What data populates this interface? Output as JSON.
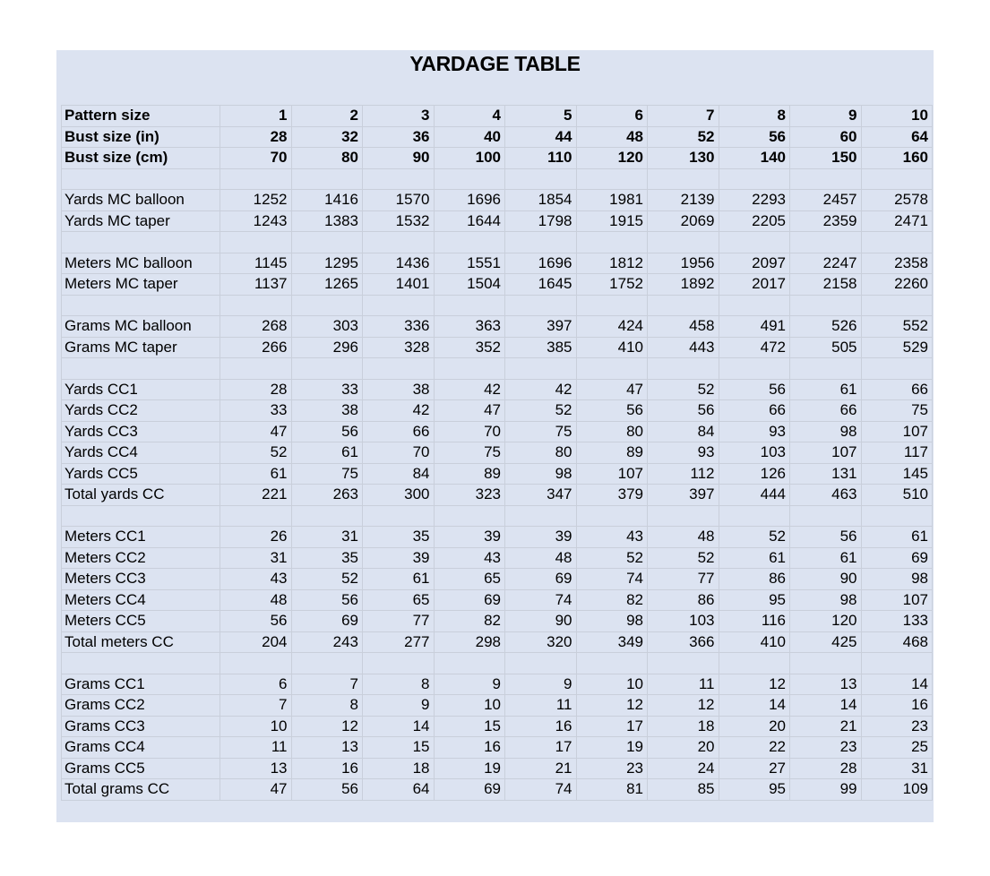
{
  "title": "YARDAGE TABLE",
  "header_rows": [
    {
      "label": "Pattern size",
      "values": [
        "1",
        "2",
        "3",
        "4",
        "5",
        "6",
        "7",
        "8",
        "9",
        "10"
      ]
    },
    {
      "label": "Bust size (in)",
      "values": [
        "28",
        "32",
        "36",
        "40",
        "44",
        "48",
        "52",
        "56",
        "60",
        "64"
      ]
    },
    {
      "label": "Bust size (cm)",
      "values": [
        "70",
        "80",
        "90",
        "100",
        "110",
        "120",
        "130",
        "140",
        "150",
        "160"
      ]
    }
  ],
  "groups": [
    [
      {
        "label": "Yards MC balloon",
        "values": [
          "1252",
          "1416",
          "1570",
          "1696",
          "1854",
          "1981",
          "2139",
          "2293",
          "2457",
          "2578"
        ]
      },
      {
        "label": "Yards MC taper",
        "values": [
          "1243",
          "1383",
          "1532",
          "1644",
          "1798",
          "1915",
          "2069",
          "2205",
          "2359",
          "2471"
        ]
      }
    ],
    [
      {
        "label": "Meters MC balloon",
        "values": [
          "1145",
          "1295",
          "1436",
          "1551",
          "1696",
          "1812",
          "1956",
          "2097",
          "2247",
          "2358"
        ]
      },
      {
        "label": "Meters MC taper",
        "values": [
          "1137",
          "1265",
          "1401",
          "1504",
          "1645",
          "1752",
          "1892",
          "2017",
          "2158",
          "2260"
        ]
      }
    ],
    [
      {
        "label": "Grams MC balloon",
        "values": [
          "268",
          "303",
          "336",
          "363",
          "397",
          "424",
          "458",
          "491",
          "526",
          "552"
        ]
      },
      {
        "label": "Grams MC taper",
        "values": [
          "266",
          "296",
          "328",
          "352",
          "385",
          "410",
          "443",
          "472",
          "505",
          "529"
        ]
      }
    ],
    [
      {
        "label": "Yards CC1",
        "values": [
          "28",
          "33",
          "38",
          "42",
          "42",
          "47",
          "52",
          "56",
          "61",
          "66"
        ]
      },
      {
        "label": "Yards CC2",
        "values": [
          "33",
          "38",
          "42",
          "47",
          "52",
          "56",
          "56",
          "66",
          "66",
          "75"
        ]
      },
      {
        "label": "Yards CC3",
        "values": [
          "47",
          "56",
          "66",
          "70",
          "75",
          "80",
          "84",
          "93",
          "98",
          "107"
        ]
      },
      {
        "label": "Yards CC4",
        "values": [
          "52",
          "61",
          "70",
          "75",
          "80",
          "89",
          "93",
          "103",
          "107",
          "117"
        ]
      },
      {
        "label": "Yards CC5",
        "values": [
          "61",
          "75",
          "84",
          "89",
          "98",
          "107",
          "112",
          "126",
          "131",
          "145"
        ]
      },
      {
        "label": "Total yards CC",
        "values": [
          "221",
          "263",
          "300",
          "323",
          "347",
          "379",
          "397",
          "444",
          "463",
          "510"
        ]
      }
    ],
    [
      {
        "label": "Meters CC1",
        "values": [
          "26",
          "31",
          "35",
          "39",
          "39",
          "43",
          "48",
          "52",
          "56",
          "61"
        ]
      },
      {
        "label": "Meters CC2",
        "values": [
          "31",
          "35",
          "39",
          "43",
          "48",
          "52",
          "52",
          "61",
          "61",
          "69"
        ]
      },
      {
        "label": "Meters CC3",
        "values": [
          "43",
          "52",
          "61",
          "65",
          "69",
          "74",
          "77",
          "86",
          "90",
          "98"
        ]
      },
      {
        "label": "Meters CC4",
        "values": [
          "48",
          "56",
          "65",
          "69",
          "74",
          "82",
          "86",
          "95",
          "98",
          "107"
        ]
      },
      {
        "label": "Meters CC5",
        "values": [
          "56",
          "69",
          "77",
          "82",
          "90",
          "98",
          "103",
          "116",
          "120",
          "133"
        ]
      },
      {
        "label": "Total meters CC",
        "values": [
          "204",
          "243",
          "277",
          "298",
          "320",
          "349",
          "366",
          "410",
          "425",
          "468"
        ]
      }
    ],
    [
      {
        "label": "Grams CC1",
        "values": [
          "6",
          "7",
          "8",
          "9",
          "9",
          "10",
          "11",
          "12",
          "13",
          "14"
        ]
      },
      {
        "label": "Grams CC2",
        "values": [
          "7",
          "8",
          "9",
          "10",
          "11",
          "12",
          "12",
          "14",
          "14",
          "16"
        ]
      },
      {
        "label": "Grams CC3",
        "values": [
          "10",
          "12",
          "14",
          "15",
          "16",
          "17",
          "18",
          "20",
          "21",
          "23"
        ]
      },
      {
        "label": "Grams CC4",
        "values": [
          "11",
          "13",
          "15",
          "16",
          "17",
          "19",
          "20",
          "22",
          "23",
          "25"
        ]
      },
      {
        "label": "Grams CC5",
        "values": [
          "13",
          "16",
          "18",
          "19",
          "21",
          "23",
          "24",
          "27",
          "28",
          "31"
        ]
      },
      {
        "label": "Total grams CC",
        "values": [
          "47",
          "56",
          "64",
          "69",
          "74",
          "81",
          "85",
          "95",
          "99",
          "109"
        ]
      }
    ]
  ]
}
